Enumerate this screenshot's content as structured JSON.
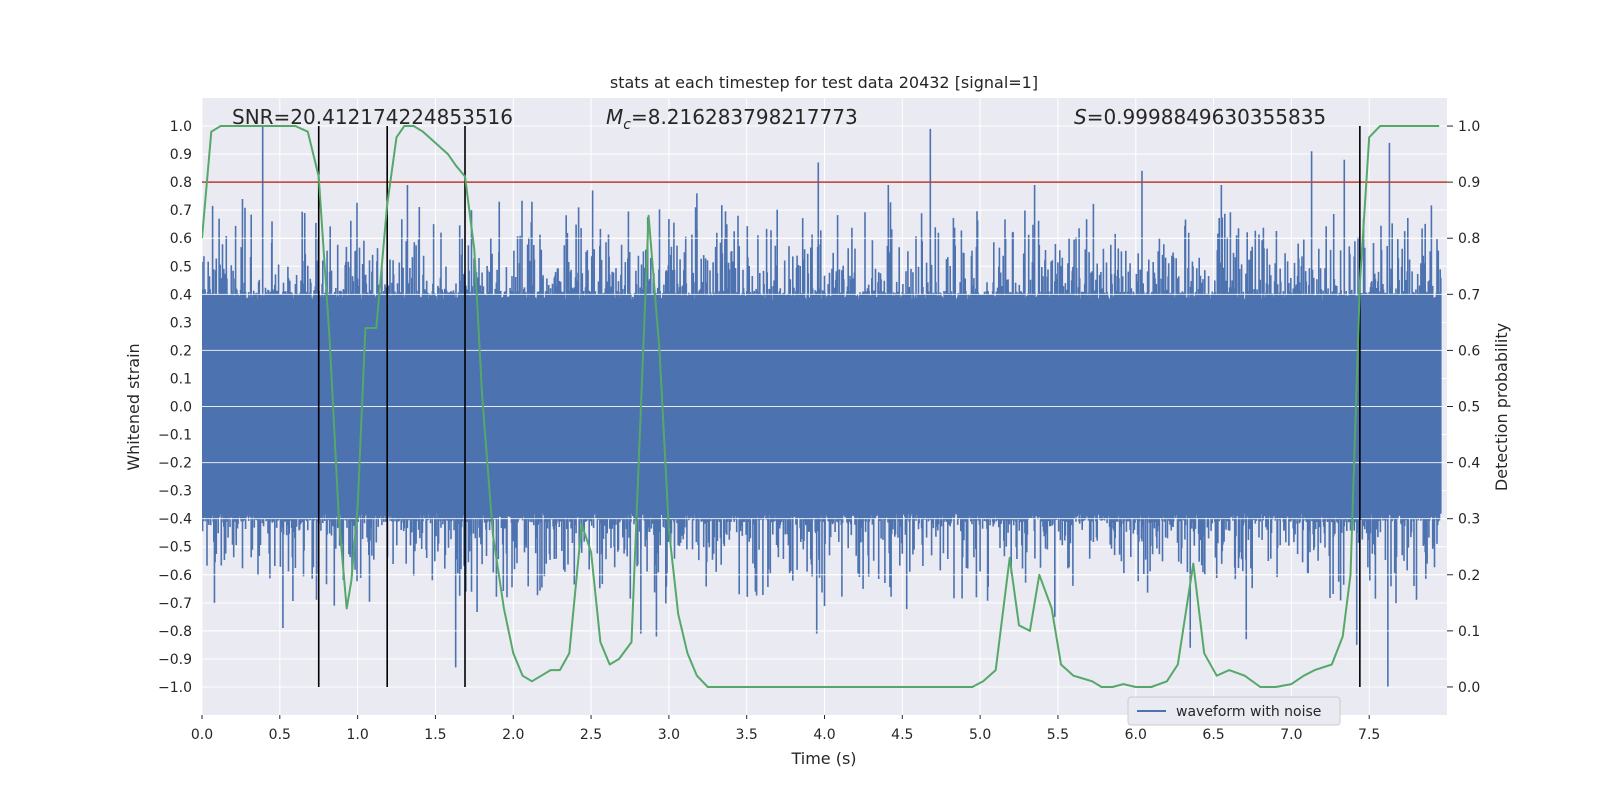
{
  "chart_data": {
    "type": "line",
    "title": "stats at each timestep for test data 20432 [signal=1]",
    "xlabel": "Time (s)",
    "ylabel_left": "Whitened strain",
    "ylabel_right": "Detection probability",
    "xlim": [
      0.0,
      8.0
    ],
    "ylim_left": [
      -1.1,
      1.1
    ],
    "ylim_right": [
      -0.05,
      1.05
    ],
    "xticks": [
      "0.0",
      "0.5",
      "1.0",
      "1.5",
      "2.0",
      "2.5",
      "3.0",
      "3.5",
      "4.0",
      "4.5",
      "5.0",
      "5.5",
      "6.0",
      "6.5",
      "7.0",
      "7.5"
    ],
    "yticks_left": [
      "1.0",
      "0.9",
      "0.8",
      "0.7",
      "0.6",
      "0.5",
      "0.4",
      "0.3",
      "0.2",
      "0.1",
      "0.0",
      "−0.1",
      "−0.2",
      "−0.3",
      "−0.4",
      "−0.5",
      "−0.6",
      "−0.7",
      "−0.8",
      "−0.9",
      "−1.0"
    ],
    "yticks_right": [
      "1.0",
      "0.9",
      "0.8",
      "0.7",
      "0.6",
      "0.5",
      "0.4",
      "0.3",
      "0.2",
      "0.1",
      "0.0"
    ],
    "grid": true,
    "annotations": {
      "snr_label": "SNR=20.412174224853516",
      "mc_symbol": "M",
      "mc_sub": "c",
      "mc_value": "=8.216283798217773",
      "s_symbol": "S",
      "s_value": "=0.9998849630355835"
    },
    "threshold": {
      "axis": "right",
      "value": 0.9,
      "color": "#c0392b"
    },
    "vertical_lines": [
      0.75,
      1.19,
      1.69,
      7.44
    ],
    "legend": {
      "label": "waveform with noise",
      "placement": "lower-right"
    },
    "series": [
      {
        "name": "waveform with noise",
        "axis": "left",
        "color": "#4c72b0",
        "envelope_typical": 0.4,
        "spikes": [
          {
            "x": 0.39,
            "y": 1.0
          },
          {
            "x": 0.26,
            "y": 0.74
          },
          {
            "x": 0.11,
            "y": 0.67
          },
          {
            "x": 0.66,
            "y": 0.69
          },
          {
            "x": 0.45,
            "y": 0.66
          },
          {
            "x": 1.32,
            "y": 0.79
          },
          {
            "x": 1.91,
            "y": 0.73
          },
          {
            "x": 2.12,
            "y": 0.73
          },
          {
            "x": 2.51,
            "y": 0.77
          },
          {
            "x": 2.42,
            "y": 0.71
          },
          {
            "x": 3.18,
            "y": 0.76
          },
          {
            "x": 3.96,
            "y": 0.87
          },
          {
            "x": 4.41,
            "y": 0.79
          },
          {
            "x": 4.68,
            "y": 0.99
          },
          {
            "x": 5.35,
            "y": 0.79
          },
          {
            "x": 6.04,
            "y": 0.84
          },
          {
            "x": 6.55,
            "y": 0.79
          },
          {
            "x": 7.13,
            "y": 0.91
          },
          {
            "x": 7.34,
            "y": 0.88
          },
          {
            "x": 7.63,
            "y": 0.94
          },
          {
            "x": 0.52,
            "y": -0.79
          },
          {
            "x": 1.63,
            "y": -0.93
          },
          {
            "x": 2.82,
            "y": -0.81
          },
          {
            "x": 2.92,
            "y": -0.82
          },
          {
            "x": 3.95,
            "y": -0.81
          },
          {
            "x": 6.35,
            "y": -0.86
          },
          {
            "x": 6.71,
            "y": -0.83
          },
          {
            "x": 7.62,
            "y": -1.0
          },
          {
            "x": 7.42,
            "y": -0.85
          },
          {
            "x": 0.85,
            "y": -0.71
          },
          {
            "x": 0.08,
            "y": -0.7
          },
          {
            "x": 5.48,
            "y": -0.75
          }
        ]
      },
      {
        "name": "Detection probability",
        "axis": "right",
        "color": "#55a868",
        "x": [
          0.0,
          0.06,
          0.12,
          0.2,
          0.3,
          0.4,
          0.5,
          0.6,
          0.68,
          0.75,
          0.82,
          0.88,
          0.93,
          0.96,
          1.0,
          1.05,
          1.12,
          1.19,
          1.25,
          1.3,
          1.36,
          1.42,
          1.5,
          1.58,
          1.63,
          1.69,
          1.75,
          1.8,
          1.87,
          1.94,
          2.0,
          2.06,
          2.12,
          2.18,
          2.24,
          2.3,
          2.36,
          2.44,
          2.5,
          2.56,
          2.62,
          2.68,
          2.76,
          2.87,
          2.94,
          3.0,
          3.06,
          3.12,
          3.18,
          3.25,
          3.35,
          3.5,
          3.65,
          3.8,
          4.0,
          4.2,
          4.5,
          4.8,
          4.95,
          5.02,
          5.1,
          5.19,
          5.25,
          5.32,
          5.38,
          5.46,
          5.52,
          5.6,
          5.66,
          5.72,
          5.78,
          5.85,
          5.92,
          6.0,
          6.1,
          6.2,
          6.27,
          6.37,
          6.44,
          6.52,
          6.6,
          6.7,
          6.8,
          6.9,
          7.0,
          7.08,
          7.15,
          7.26,
          7.33,
          7.38,
          7.44,
          7.5,
          7.57,
          7.7,
          7.85,
          7.95
        ],
        "y": [
          0.8,
          0.99,
          1.0,
          1.0,
          1.0,
          1.0,
          1.0,
          1.0,
          0.99,
          0.91,
          0.62,
          0.3,
          0.14,
          0.19,
          0.32,
          0.64,
          0.64,
          0.86,
          0.98,
          1.0,
          1.0,
          0.99,
          0.97,
          0.95,
          0.93,
          0.91,
          0.78,
          0.52,
          0.27,
          0.14,
          0.06,
          0.02,
          0.01,
          0.02,
          0.03,
          0.03,
          0.06,
          0.29,
          0.24,
          0.08,
          0.04,
          0.05,
          0.08,
          0.84,
          0.6,
          0.28,
          0.13,
          0.06,
          0.02,
          0.0,
          0.0,
          0.0,
          0.0,
          0.0,
          0.0,
          0.0,
          0.0,
          0.0,
          0.0,
          0.01,
          0.03,
          0.23,
          0.11,
          0.1,
          0.2,
          0.14,
          0.04,
          0.02,
          0.015,
          0.01,
          0.0,
          0.0,
          0.005,
          0.0,
          0.0,
          0.01,
          0.04,
          0.22,
          0.06,
          0.02,
          0.03,
          0.02,
          0.0,
          0.0,
          0.005,
          0.02,
          0.03,
          0.04,
          0.09,
          0.2,
          0.72,
          0.98,
          1.0,
          1.0,
          1.0,
          1.0
        ]
      }
    ]
  }
}
